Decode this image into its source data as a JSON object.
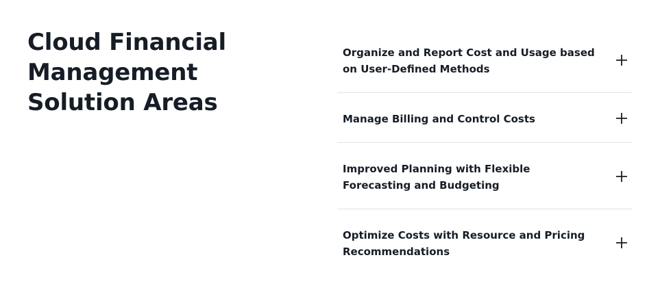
{
  "section": {
    "title": "Cloud Financial Management Solution Areas"
  },
  "accordion": {
    "items": [
      {
        "label": "Organize and Report Cost and Usage based on User-Defined Methods",
        "icon": "plus-icon",
        "expanded": false
      },
      {
        "label": "Manage Billing and Control Costs",
        "icon": "plus-icon",
        "expanded": false
      },
      {
        "label": "Improved Planning with Flexible Forecasting and Budgeting",
        "icon": "plus-icon",
        "expanded": false
      },
      {
        "label": "Optimize Costs with Resource and Pricing Recommendations",
        "icon": "plus-icon",
        "expanded": false
      }
    ]
  },
  "colors": {
    "text": "#161d26",
    "divider": "#dfe3e6",
    "background": "#ffffff"
  }
}
